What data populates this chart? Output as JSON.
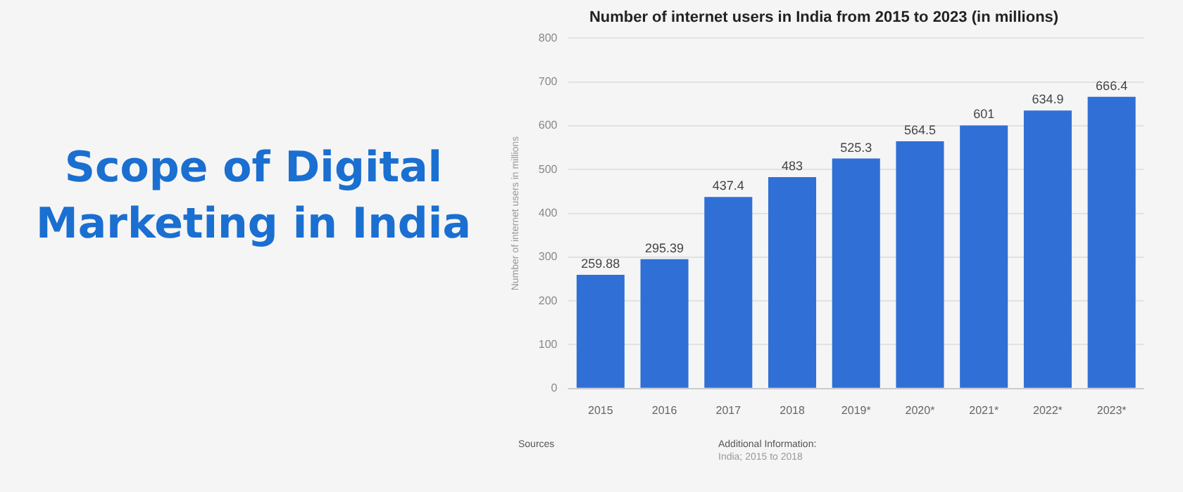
{
  "chart_data": {
    "type": "bar",
    "title": "Number of internet users in India from 2015 to 2023 (in millions)",
    "ylabel": "Number of internet users in millions",
    "categories": [
      "2015",
      "2016",
      "2017",
      "2018",
      "2019*",
      "2020*",
      "2021*",
      "2022*",
      "2023*"
    ],
    "values": [
      259.88,
      295.39,
      437.4,
      483,
      525.3,
      564.5,
      601,
      634.9,
      666.4
    ],
    "color": "#2f6fd6",
    "ylim": [
      0,
      800
    ],
    "yticks": [
      0,
      100,
      200,
      300,
      400,
      500,
      600,
      700,
      800
    ],
    "grid": "y",
    "data_labels": true,
    "annotations": [
      "Scope of Digital Marketing in India",
      "Sources",
      "Additional Information:",
      "India; 2015 to 2018"
    ]
  }
}
